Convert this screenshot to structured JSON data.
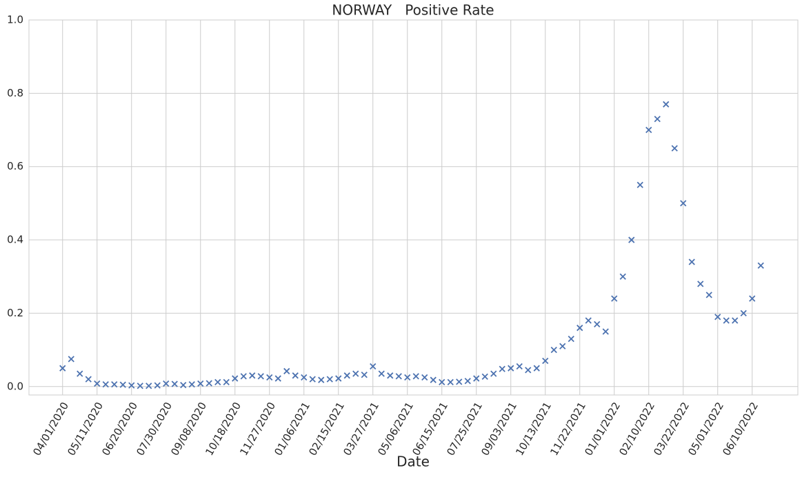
{
  "chart_data": {
    "type": "scatter",
    "title": "NORWAY   Positive Rate",
    "x_label": "Date",
    "marker": "x",
    "color": "#4c72b0",
    "grid": true,
    "xlim": [
      "02/22/2020",
      "08/02/2022"
    ],
    "xticks": [
      "04/01/2020",
      "05/11/2020",
      "06/20/2020",
      "07/30/2020",
      "09/08/2020",
      "10/18/2020",
      "11/27/2020",
      "01/06/2021",
      "02/15/2021",
      "03/27/2021",
      "05/06/2021",
      "06/15/2021",
      "07/25/2021",
      "09/03/2021",
      "10/13/2021",
      "11/22/2021",
      "01/01/2022",
      "02/10/2022",
      "03/22/2022",
      "05/01/2022",
      "06/10/2022"
    ],
    "ylim": [
      -0.023,
      1.0
    ],
    "yticks": [
      {
        "value": 0,
        "label": "0.0"
      },
      0.2,
      0.4,
      0.6,
      0.8,
      {
        "value": 1,
        "label": "1.0"
      }
    ],
    "x": [
      "04/01/2020",
      "04/11/2020",
      "04/21/2020",
      "05/01/2020",
      "05/11/2020",
      "05/21/2020",
      "05/31/2020",
      "06/10/2020",
      "06/20/2020",
      "06/30/2020",
      "07/10/2020",
      "07/20/2020",
      "07/30/2020",
      "08/09/2020",
      "08/19/2020",
      "08/29/2020",
      "09/08/2020",
      "09/18/2020",
      "09/28/2020",
      "10/08/2020",
      "10/18/2020",
      "10/28/2020",
      "11/07/2020",
      "11/17/2020",
      "11/27/2020",
      "12/07/2020",
      "12/17/2020",
      "12/27/2020",
      "01/06/2021",
      "01/16/2021",
      "01/26/2021",
      "02/05/2021",
      "02/15/2021",
      "02/25/2021",
      "03/07/2021",
      "03/17/2021",
      "03/27/2021",
      "04/06/2021",
      "04/16/2021",
      "04/26/2021",
      "05/06/2021",
      "05/16/2021",
      "05/26/2021",
      "06/05/2021",
      "06/15/2021",
      "06/25/2021",
      "07/05/2021",
      "07/15/2021",
      "07/25/2021",
      "08/04/2021",
      "08/14/2021",
      "08/24/2021",
      "09/03/2021",
      "09/13/2021",
      "09/23/2021",
      "10/03/2021",
      "10/13/2021",
      "10/23/2021",
      "11/02/2021",
      "11/12/2021",
      "11/22/2021",
      "12/02/2021",
      "12/12/2021",
      "12/22/2021",
      "01/01/2022",
      "01/11/2022",
      "01/21/2022",
      "01/31/2022",
      "02/10/2022",
      "02/20/2022",
      "03/02/2022",
      "03/12/2022",
      "03/22/2022",
      "04/01/2022",
      "04/11/2022",
      "04/21/2022",
      "05/01/2022",
      "05/11/2022",
      "05/21/2022",
      "05/31/2022",
      "06/10/2022",
      "06/20/2022"
    ],
    "values": [
      0.05,
      0.075,
      0.035,
      0.02,
      0.008,
      0.006,
      0.006,
      0.005,
      0.003,
      0.002,
      0.002,
      0.003,
      0.008,
      0.007,
      0.004,
      0.006,
      0.008,
      0.009,
      0.012,
      0.012,
      0.022,
      0.028,
      0.03,
      0.028,
      0.025,
      0.022,
      0.042,
      0.03,
      0.025,
      0.02,
      0.018,
      0.02,
      0.022,
      0.03,
      0.035,
      0.032,
      0.055,
      0.035,
      0.03,
      0.028,
      0.025,
      0.028,
      0.025,
      0.018,
      0.012,
      0.012,
      0.013,
      0.015,
      0.022,
      0.027,
      0.035,
      0.048,
      0.05,
      0.055,
      0.045,
      0.05,
      0.07,
      0.1,
      0.11,
      0.13,
      0.16,
      0.18,
      0.17,
      0.15,
      0.24,
      0.3,
      0.4,
      0.55,
      0.7,
      0.73,
      0.77,
      0.65,
      0.5,
      0.34,
      0.28,
      0.25,
      0.19,
      0.18,
      0.18,
      0.2,
      0.24,
      0.33
    ]
  }
}
